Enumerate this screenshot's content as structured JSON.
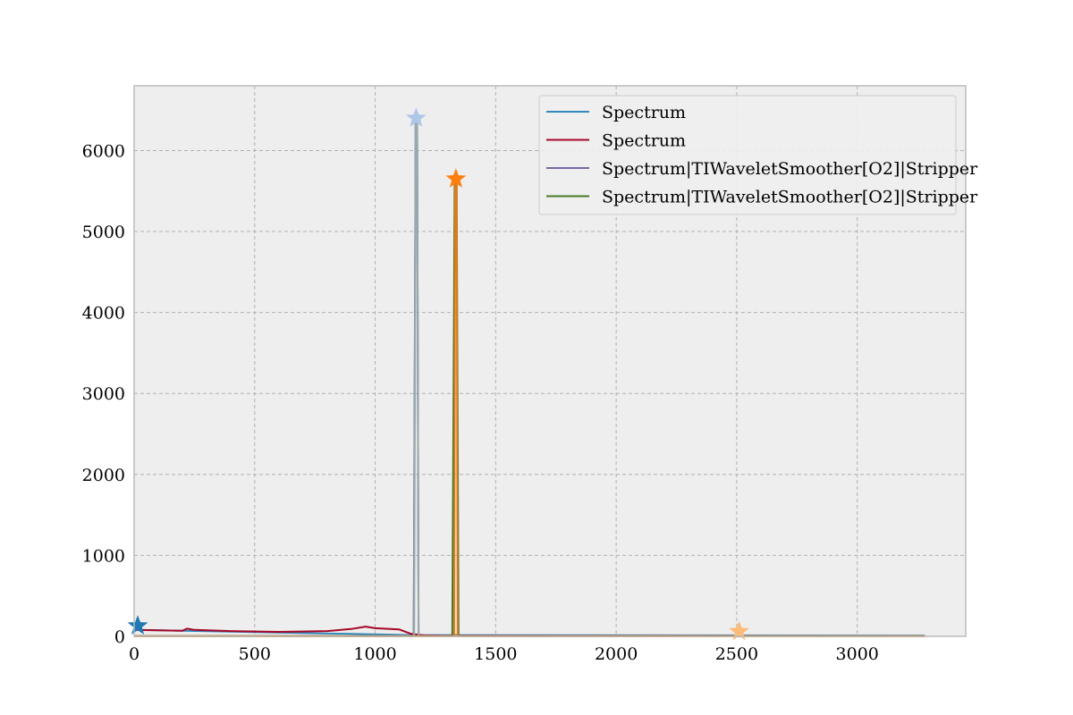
{
  "chart_data": {
    "type": "line",
    "title": "",
    "xlabel": "",
    "ylabel": "",
    "xlim": [
      0,
      3450
    ],
    "ylim": [
      0,
      6800
    ],
    "xticks": [
      0,
      500,
      1000,
      1500,
      2000,
      2500,
      3000
    ],
    "yticks": [
      0,
      1000,
      2000,
      3000,
      4000,
      5000,
      6000
    ],
    "xtick_labels": [
      "0",
      "500",
      "1000",
      "1500",
      "2000",
      "2500",
      "3000"
    ],
    "ytick_labels": [
      "0",
      "1000",
      "2000",
      "3000",
      "4000",
      "5000",
      "6000"
    ],
    "grid": true,
    "legend_position": "top-right",
    "colors": {
      "background": "#eeeeee",
      "grid": "#b0b0b0",
      "frame": "#bcbcbc"
    },
    "series": [
      {
        "name": "Spectrum",
        "color": "#348abd",
        "points": [
          [
            0,
            150
          ],
          [
            10,
            150
          ],
          [
            20,
            80
          ],
          [
            200,
            70
          ],
          [
            1160,
            15
          ],
          [
            1168,
            6400
          ],
          [
            1174,
            6400
          ],
          [
            1180,
            15
          ],
          [
            3280,
            10
          ]
        ]
      },
      {
        "name": "Spectrum",
        "color": "#a60628",
        "points": [
          [
            0,
            80
          ],
          [
            100,
            75
          ],
          [
            200,
            70
          ],
          [
            220,
            95
          ],
          [
            250,
            80
          ],
          [
            400,
            65
          ],
          [
            600,
            55
          ],
          [
            800,
            65
          ],
          [
            900,
            90
          ],
          [
            960,
            120
          ],
          [
            1000,
            100
          ],
          [
            1100,
            85
          ],
          [
            1150,
            30
          ],
          [
            1200,
            12
          ],
          [
            1300,
            8
          ],
          [
            3280,
            5
          ]
        ]
      },
      {
        "name": "Spectrum|TIWaveletSmoother[O2]|Stripper",
        "color": "#7a68a6",
        "points": [
          [
            0,
            5
          ],
          [
            1160,
            5
          ],
          [
            1168,
            6400
          ],
          [
            1174,
            6400
          ],
          [
            1180,
            5
          ],
          [
            3280,
            2
          ]
        ]
      },
      {
        "name": "Spectrum|TIWaveletSmoother[O2]|Stripper",
        "color": "#467821",
        "points": [
          [
            0,
            3
          ],
          [
            1320,
            3
          ],
          [
            1330,
            5650
          ],
          [
            1338,
            5650
          ],
          [
            1346,
            3
          ],
          [
            3280,
            2
          ]
        ]
      },
      {
        "name": "",
        "color": "#99aaaa",
        "points": [
          [
            0,
            2
          ],
          [
            1162,
            2
          ],
          [
            1168,
            6400
          ],
          [
            1174,
            6400
          ],
          [
            1180,
            2
          ],
          [
            3280,
            2
          ]
        ]
      },
      {
        "name": "",
        "color": "#e07b1a",
        "points": [
          [
            0,
            1
          ],
          [
            1328,
            1
          ],
          [
            1332,
            5650
          ],
          [
            1338,
            5650
          ],
          [
            1342,
            1
          ],
          [
            3280,
            1
          ]
        ]
      }
    ],
    "markers": [
      {
        "label": "",
        "x": 15,
        "y": 130,
        "color": "#1f77b4",
        "shape": "star"
      },
      {
        "label": "",
        "x": 1170,
        "y": 6400,
        "color": "#aec7e8",
        "shape": "star"
      },
      {
        "label": "",
        "x": 1335,
        "y": 5650,
        "color": "#ff7f0e",
        "shape": "star"
      },
      {
        "label": "",
        "x": 2510,
        "y": 60,
        "color": "#ffbb78",
        "shape": "star"
      }
    ]
  }
}
